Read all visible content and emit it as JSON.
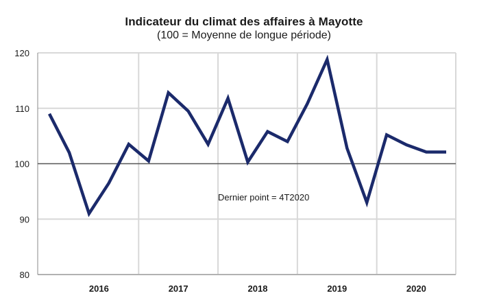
{
  "chart_data": {
    "type": "line",
    "title": "Indicateur du climat des affaires à Mayotte",
    "subtitle": "(100 = Moyenne de longue période)",
    "xlabel": "",
    "ylabel": "",
    "ylim": [
      80,
      120
    ],
    "yticks": [
      80,
      90,
      100,
      110,
      120
    ],
    "year_labels": [
      "2016",
      "2017",
      "2018",
      "2019",
      "2020"
    ],
    "reference_line": 100,
    "grid": true,
    "annotation": "Dernier point = 4T2020",
    "series": [
      {
        "color": "#1b2a6b",
        "x": [
          "2015T4",
          "2016T1",
          "2016T2",
          "2016T3",
          "2016T4",
          "2017T1",
          "2017T2",
          "2017T3",
          "2017T4",
          "2018T1",
          "2018T2",
          "2018T3",
          "2018T4",
          "2019T1",
          "2019T2",
          "2019T3",
          "2019T4",
          "2020T1",
          "2020T2",
          "2020T3",
          "2020T4"
        ],
        "values": [
          109,
          102,
          91,
          96.5,
          103.5,
          100.5,
          112.8,
          109.5,
          103.5,
          111.8,
          100.3,
          105.8,
          104,
          110.8,
          118.8,
          102.8,
          93,
          105.2,
          103.4,
          102.1,
          102.1
        ]
      }
    ]
  }
}
